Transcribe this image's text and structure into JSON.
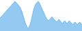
{
  "chart_data": {
    "type": "area",
    "values": [
      28,
      29,
      30,
      31,
      32,
      33,
      34,
      35,
      36,
      37,
      38,
      39,
      40,
      41,
      40,
      39,
      38,
      37,
      35,
      33,
      30,
      27,
      24,
      22,
      20,
      21,
      23,
      26,
      30,
      34,
      37,
      39,
      40,
      41,
      40,
      38,
      36,
      34,
      32,
      30,
      28,
      27,
      26,
      27,
      28,
      29,
      28,
      27,
      26,
      25,
      26,
      27,
      26,
      25,
      24,
      25,
      26,
      25,
      24,
      25,
      26,
      25,
      24,
      23,
      24,
      25,
      24,
      23,
      24,
      25,
      24,
      23
    ],
    "color": "#4da6e8",
    "ylim": [
      18,
      42
    ],
    "grid": false,
    "tick_labels": false
  }
}
